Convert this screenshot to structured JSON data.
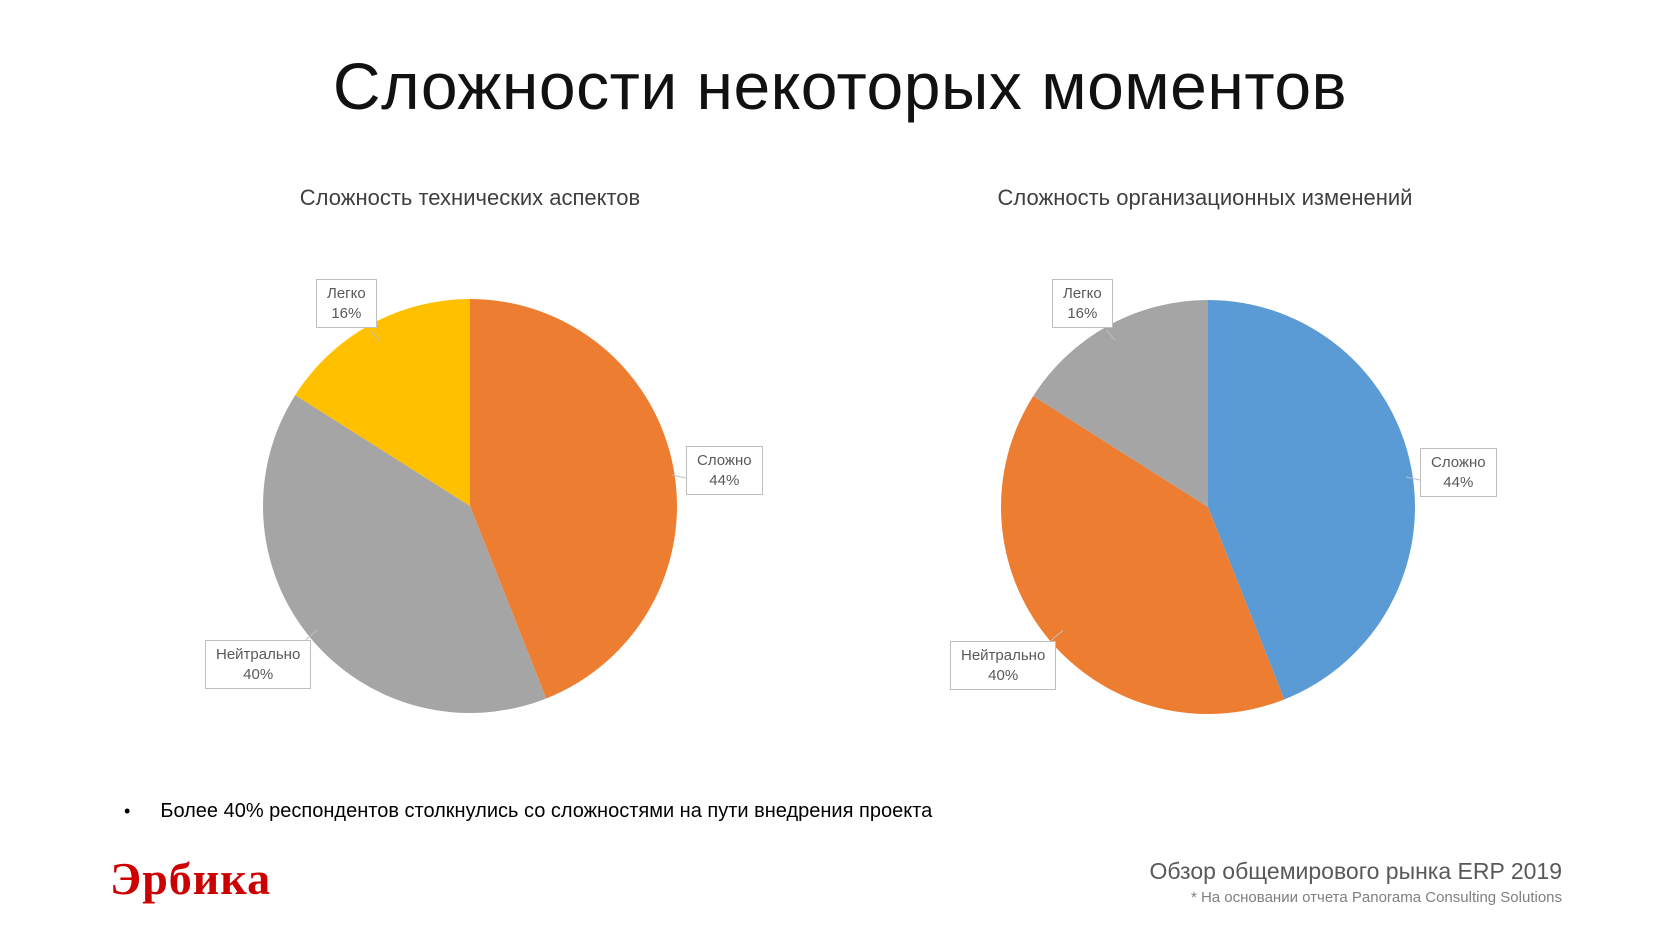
{
  "slide": {
    "title": "Сложности некоторых моментов",
    "bullet_symbol": "•",
    "bullet_text": "Более 40% респондентов столкнулись со сложностями на пути внедрения проекта",
    "logo_text": "Эрбика",
    "source_title": "Обзор общемирового рынка ERP 2019",
    "source_note": "* На основании отчета Panorama Consulting Solutions"
  },
  "colors": {
    "logo_red": "#CC0000",
    "orange": "#ED7D31",
    "gray": "#A5A5A5",
    "yellow": "#FFC000",
    "blue": "#5B9BD5"
  },
  "chart_data": [
    {
      "type": "pie",
      "title": "Сложность технических аспектов",
      "labels": [
        "Сложно",
        "Нейтрально",
        "Легко"
      ],
      "values": [
        44,
        40,
        16
      ],
      "value_labels": [
        "44%",
        "40%",
        "16%"
      ],
      "colors": [
        "#ED7D31",
        "#A5A5A5",
        "#FFC000"
      ],
      "start_angle_deg": 0,
      "direction": "clockwise",
      "legend": "none",
      "data_labels": "outside-callouts"
    },
    {
      "type": "pie",
      "title": "Сложность организационных изменений",
      "labels": [
        "Сложно",
        "Нейтрально",
        "Легко"
      ],
      "values": [
        44,
        40,
        16
      ],
      "value_labels": [
        "44%",
        "40%",
        "16%"
      ],
      "colors": [
        "#5B9BD5",
        "#ED7D31",
        "#A5A5A5"
      ],
      "start_angle_deg": 0,
      "direction": "clockwise",
      "legend": "none",
      "data_labels": "outside-callouts"
    }
  ]
}
